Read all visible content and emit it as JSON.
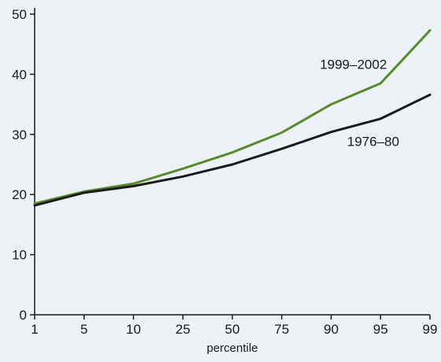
{
  "chart_data": {
    "type": "line",
    "title": "",
    "xlabel": "percentile",
    "ylabel": "",
    "x": [
      "1",
      "5",
      "10",
      "25",
      "50",
      "75",
      "90",
      "95",
      "99"
    ],
    "ylim": [
      0,
      50
    ],
    "yticks": [
      0,
      10,
      20,
      30,
      40,
      50
    ],
    "grid": false,
    "series": [
      {
        "name": "1999–2002",
        "color": "#5a8a2e",
        "values": [
          18.5,
          20.5,
          21.8,
          24.3,
          27.0,
          30.3,
          35.0,
          38.5,
          47.3
        ]
      },
      {
        "name": "1976–80",
        "color": "#1a1a1a",
        "values": [
          18.2,
          20.3,
          21.4,
          23.0,
          25.0,
          27.6,
          30.4,
          32.6,
          36.6
        ]
      }
    ]
  }
}
